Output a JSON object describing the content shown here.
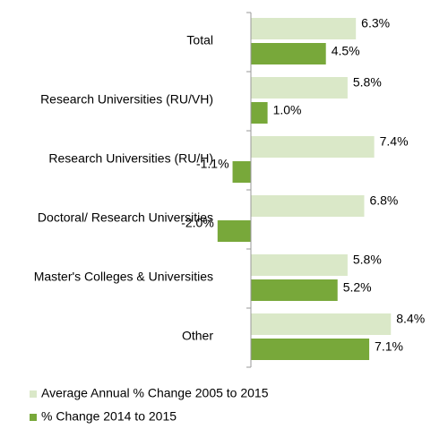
{
  "chart_data": {
    "type": "bar",
    "orientation": "horizontal",
    "categories": [
      "Total",
      "Research Universities (RU/VH)",
      "Research Universities (RU/H)",
      "Doctoral/ Research Universities",
      "Master's Colleges & Universities",
      "Other"
    ],
    "series": [
      {
        "name": "Average Annual % Change 2005 to 2015",
        "color": "#dae8c8",
        "values": [
          6.3,
          5.8,
          7.4,
          6.8,
          5.8,
          8.4
        ],
        "value_labels": [
          "6.3%",
          "5.8%",
          "7.4%",
          "6.8%",
          "5.8%",
          "8.4%"
        ]
      },
      {
        "name": "% Change 2014 to 2015",
        "color": "#78a83a",
        "values": [
          4.5,
          1.0,
          -1.1,
          -2.0,
          5.2,
          7.1
        ],
        "value_labels": [
          "4.5%",
          "1.0%",
          "-1.1%",
          "-2.0%",
          "5.2%",
          "7.1%"
        ]
      }
    ],
    "legend": "bottom-left"
  }
}
